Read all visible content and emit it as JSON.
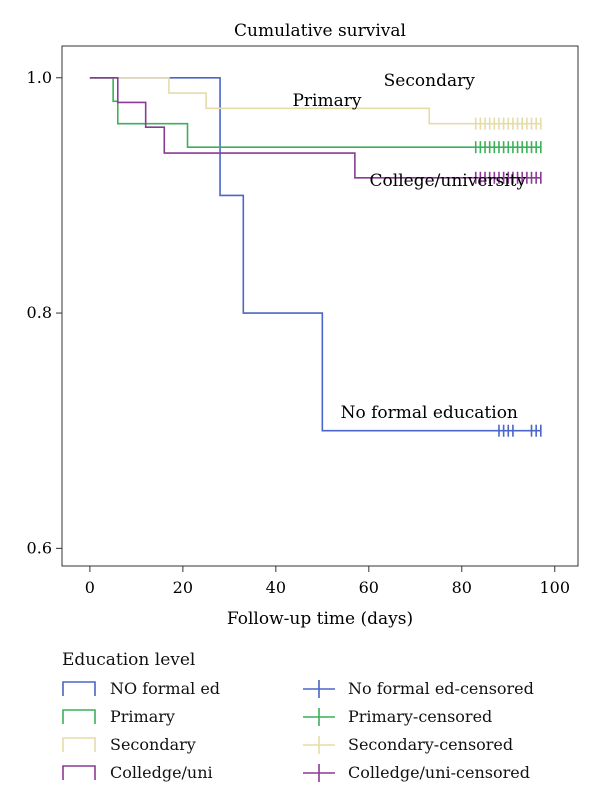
{
  "chart_data": {
    "type": "line",
    "title": "Cumulative survival",
    "xlabel": "Follow-up time (days)",
    "ylabel": "",
    "xlim": [
      -6,
      105
    ],
    "ylim": [
      0.585,
      1.027
    ],
    "xticks": [
      0,
      20,
      40,
      60,
      80,
      100
    ],
    "yticks": [
      0.6,
      0.8,
      1.0
    ],
    "ytick_labels": [
      "0.6",
      "0.8",
      "1.0"
    ],
    "series": [
      {
        "name": "NO formal ed",
        "color": "#4a66c8",
        "steps": [
          [
            0,
            1.0
          ],
          [
            28,
            0.9
          ],
          [
            33,
            0.8
          ],
          [
            50,
            0.7
          ],
          [
            97,
            0.7
          ]
        ],
        "censored": [
          88,
          89,
          90,
          91,
          95,
          96,
          97
        ]
      },
      {
        "name": "Primary",
        "color": "#3cb15a",
        "steps": [
          [
            0,
            1.0
          ],
          [
            5,
            0.98
          ],
          [
            6,
            0.961
          ],
          [
            21,
            0.941
          ],
          [
            97,
            0.941
          ]
        ],
        "censored": [
          83,
          84,
          85,
          86,
          87,
          88,
          89,
          90,
          91,
          92,
          93,
          94,
          95,
          96,
          97
        ]
      },
      {
        "name": "Secondary",
        "color": "#e6dca8",
        "steps": [
          [
            0,
            1.0
          ],
          [
            17,
            0.987
          ],
          [
            25,
            0.974
          ],
          [
            73,
            0.961
          ],
          [
            97,
            0.961
          ]
        ],
        "censored": [
          83,
          84,
          85,
          86,
          87,
          88,
          89,
          90,
          91,
          92,
          93,
          94,
          95,
          96,
          97
        ]
      },
      {
        "name": "Colledge/uni",
        "color": "#8b3a95",
        "steps": [
          [
            0,
            1.0
          ],
          [
            6,
            0.979
          ],
          [
            12,
            0.958
          ],
          [
            16,
            0.936
          ],
          [
            57,
            0.915
          ],
          [
            97,
            0.915
          ]
        ],
        "censored": [
          83,
          84,
          85,
          86,
          87,
          88,
          89,
          90,
          91,
          92,
          93,
          94,
          95,
          96,
          97
        ]
      }
    ],
    "annotations": [
      {
        "text": "Secondary",
        "x": 73,
        "y": 0.993
      },
      {
        "text": "Primary",
        "x": 51,
        "y": 0.976
      },
      {
        "text": "College/university",
        "x": 77,
        "y": 0.908
      },
      {
        "text": "No formal education",
        "x": 73,
        "y": 0.711
      }
    ],
    "legend": {
      "title": "Education level",
      "placement": "bottom",
      "items": [
        {
          "label": "NO formal ed",
          "color": "#4a66c8",
          "symbol": "step"
        },
        {
          "label": "Primary",
          "color": "#3cb15a",
          "symbol": "step"
        },
        {
          "label": "Secondary",
          "color": "#e6dca8",
          "symbol": "step"
        },
        {
          "label": "Colledge/uni",
          "color": "#8b3a95",
          "symbol": "step"
        },
        {
          "label": "No formal ed-censored",
          "color": "#4a66c8",
          "symbol": "cross"
        },
        {
          "label": "Primary-censored",
          "color": "#3cb15a",
          "symbol": "cross"
        },
        {
          "label": "Secondary-censored",
          "color": "#e6dca8",
          "symbol": "cross"
        },
        {
          "label": "Colledge/uni-censored",
          "color": "#8b3a95",
          "symbol": "cross"
        }
      ]
    }
  }
}
